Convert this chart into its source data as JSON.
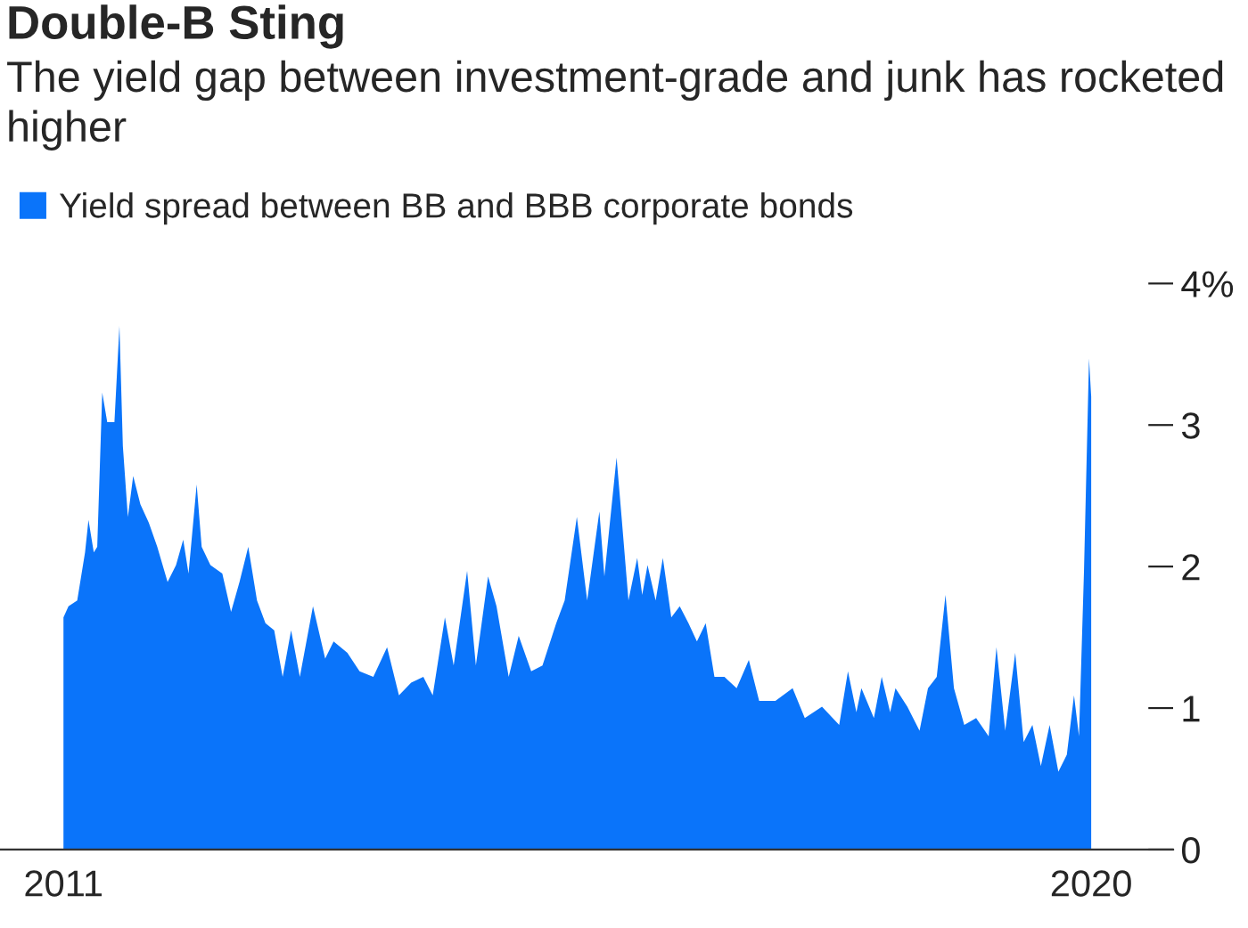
{
  "chart_data": {
    "type": "area",
    "title": "Double-B Sting",
    "subtitle": "The yield gap between investment-grade and junk has rocketed higher",
    "x": [
      "2011-01-01",
      "2011-01-17",
      "2011-02-14",
      "2011-03-11",
      "2011-03-22",
      "2011-04-08",
      "2011-04-19",
      "2011-05-05",
      "2011-05-21",
      "2011-06-13",
      "2011-06-29",
      "2011-07-10",
      "2011-07-26",
      "2011-08-12",
      "2011-09-04",
      "2011-10-01",
      "2011-10-28",
      "2011-11-30",
      "2011-12-27",
      "2012-01-19",
      "2012-02-05",
      "2012-03-02",
      "2012-03-18",
      "2012-04-15",
      "2012-05-23",
      "2012-06-20",
      "2012-07-17",
      "2012-08-14",
      "2012-09-11",
      "2012-10-08",
      "2012-11-05",
      "2012-12-02",
      "2012-12-29",
      "2013-01-26",
      "2013-03-09",
      "2013-04-17",
      "2013-05-14",
      "2013-06-27",
      "2013-08-05",
      "2013-09-18",
      "2013-11-01",
      "2013-12-09",
      "2014-01-17",
      "2014-02-25",
      "2014-03-27",
      "2014-05-05",
      "2014-06-02",
      "2014-07-15",
      "2014-08-12",
      "2014-09-20",
      "2014-10-17",
      "2014-11-25",
      "2014-12-27",
      "2015-02-05",
      "2015-03-13",
      "2015-04-26",
      "2015-05-23",
      "2015-07-01",
      "2015-08-03",
      "2015-09-11",
      "2015-09-27",
      "2015-11-05",
      "2015-11-21",
      "2015-12-13",
      "2016-01-10",
      "2016-01-26",
      "2016-02-12",
      "2016-03-09",
      "2016-04-01",
      "2016-04-28",
      "2016-05-25",
      "2016-06-22",
      "2016-07-19",
      "2016-08-16",
      "2016-09-13",
      "2016-10-15",
      "2016-11-23",
      "2017-01-01",
      "2017-02-03",
      "2017-03-27",
      "2017-05-21",
      "2017-06-29",
      "2017-08-23",
      "2017-10-17",
      "2017-11-14",
      "2017-12-11",
      "2017-12-27",
      "2018-02-05",
      "2018-03-02",
      "2018-03-29",
      "2018-04-15",
      "2018-05-23",
      "2018-07-01",
      "2018-07-28",
      "2018-08-25",
      "2018-09-22",
      "2018-10-19",
      "2018-11-21",
      "2018-12-29",
      "2019-02-07",
      "2019-03-04",
      "2019-04-01",
      "2019-05-03",
      "2019-05-30",
      "2019-06-27",
      "2019-07-24",
      "2019-08-21",
      "2019-09-18",
      "2019-10-15",
      "2019-11-07",
      "2019-11-23",
      "2019-12-09",
      "2019-12-25",
      "2020-01-01"
    ],
    "series": [
      {
        "name": "Yield spread between BB and BBB corporate bonds",
        "color": "#0a74fa",
        "values": [
          1.64,
          1.72,
          1.76,
          2.1,
          2.33,
          2.1,
          2.14,
          3.23,
          3.02,
          3.02,
          3.7,
          2.85,
          2.35,
          2.64,
          2.44,
          2.31,
          2.14,
          1.89,
          2.01,
          2.19,
          1.95,
          2.58,
          2.14,
          2.01,
          1.95,
          1.68,
          1.89,
          2.14,
          1.76,
          1.6,
          1.55,
          1.22,
          1.55,
          1.22,
          1.72,
          1.35,
          1.47,
          1.39,
          1.26,
          1.22,
          1.43,
          1.09,
          1.18,
          1.22,
          1.09,
          1.64,
          1.3,
          1.97,
          1.3,
          1.93,
          1.72,
          1.22,
          1.51,
          1.26,
          1.3,
          1.6,
          1.76,
          2.35,
          1.76,
          2.39,
          1.93,
          2.77,
          2.35,
          1.76,
          2.06,
          1.8,
          2.01,
          1.76,
          2.06,
          1.64,
          1.72,
          1.6,
          1.47,
          1.6,
          1.22,
          1.22,
          1.14,
          1.34,
          1.05,
          1.05,
          1.14,
          0.93,
          1.01,
          0.88,
          1.26,
          0.97,
          1.14,
          0.93,
          1.22,
          0.97,
          1.14,
          1.01,
          0.84,
          1.14,
          1.22,
          1.8,
          1.14,
          0.88,
          0.93,
          0.8,
          1.43,
          0.84,
          1.39,
          0.76,
          0.88,
          0.59,
          0.88,
          0.55,
          0.67,
          1.09,
          0.8,
          1.97,
          3.47,
          3.2
        ]
      }
    ],
    "xlim": [
      "2010-06-12",
      "2020-09-19"
    ],
    "xticks": [
      {
        "value": "2011-01-01",
        "label": "2011"
      },
      {
        "value": "2020-01-01",
        "label": "2020"
      }
    ],
    "ylim": [
      0,
      4
    ],
    "yticks": [
      0,
      1,
      2,
      3,
      {
        "value": 4,
        "label": "4%"
      }
    ],
    "grid": false,
    "legend": "top left"
  }
}
